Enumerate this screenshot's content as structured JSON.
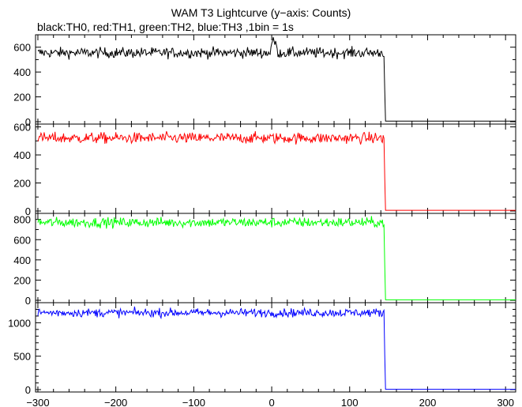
{
  "chart_data": {
    "type": "line",
    "title": "WAM T3 Lightcurve (y−axis: Counts)",
    "subtitle": "black:TH0, red:TH1, green:TH2, blue:TH3 ,1bin = 1s",
    "xlim": [
      -303,
      313
    ],
    "x_ticks": [
      -300,
      -200,
      -100,
      0,
      100,
      200,
      300
    ],
    "x_step": 1,
    "drop_x": 145,
    "panels": [
      {
        "name": "TH0",
        "color": "#000000",
        "ylim": [
          0,
          700
        ],
        "y_ticks": [
          0,
          200,
          400,
          600
        ],
        "y_minor": 100,
        "level": 555,
        "noise": 30,
        "after_drop": 5,
        "features": [
          {
            "x": 0,
            "peak": 630
          },
          {
            "x": 2,
            "peak": 680
          },
          {
            "x": 5,
            "peak": 650
          }
        ]
      },
      {
        "name": "TH1",
        "color": "#ff0000",
        "ylim": [
          0,
          620
        ],
        "y_ticks": [
          0,
          200,
          400,
          600
        ],
        "y_minor": 100,
        "level": 520,
        "noise": 28,
        "after_drop": 5,
        "features": []
      },
      {
        "name": "TH2",
        "color": "#00ff00",
        "ylim": [
          0,
          860
        ],
        "y_ticks": [
          0,
          200,
          400,
          600,
          800
        ],
        "y_minor": 100,
        "level": 770,
        "noise": 35,
        "after_drop": 5,
        "features": []
      },
      {
        "name": "TH3",
        "color": "#0000ff",
        "ylim": [
          0,
          1300
        ],
        "y_ticks": [
          0,
          500,
          1000
        ],
        "y_minor": 100,
        "level": 1150,
        "noise": 45,
        "after_drop": 5,
        "features": []
      }
    ]
  }
}
